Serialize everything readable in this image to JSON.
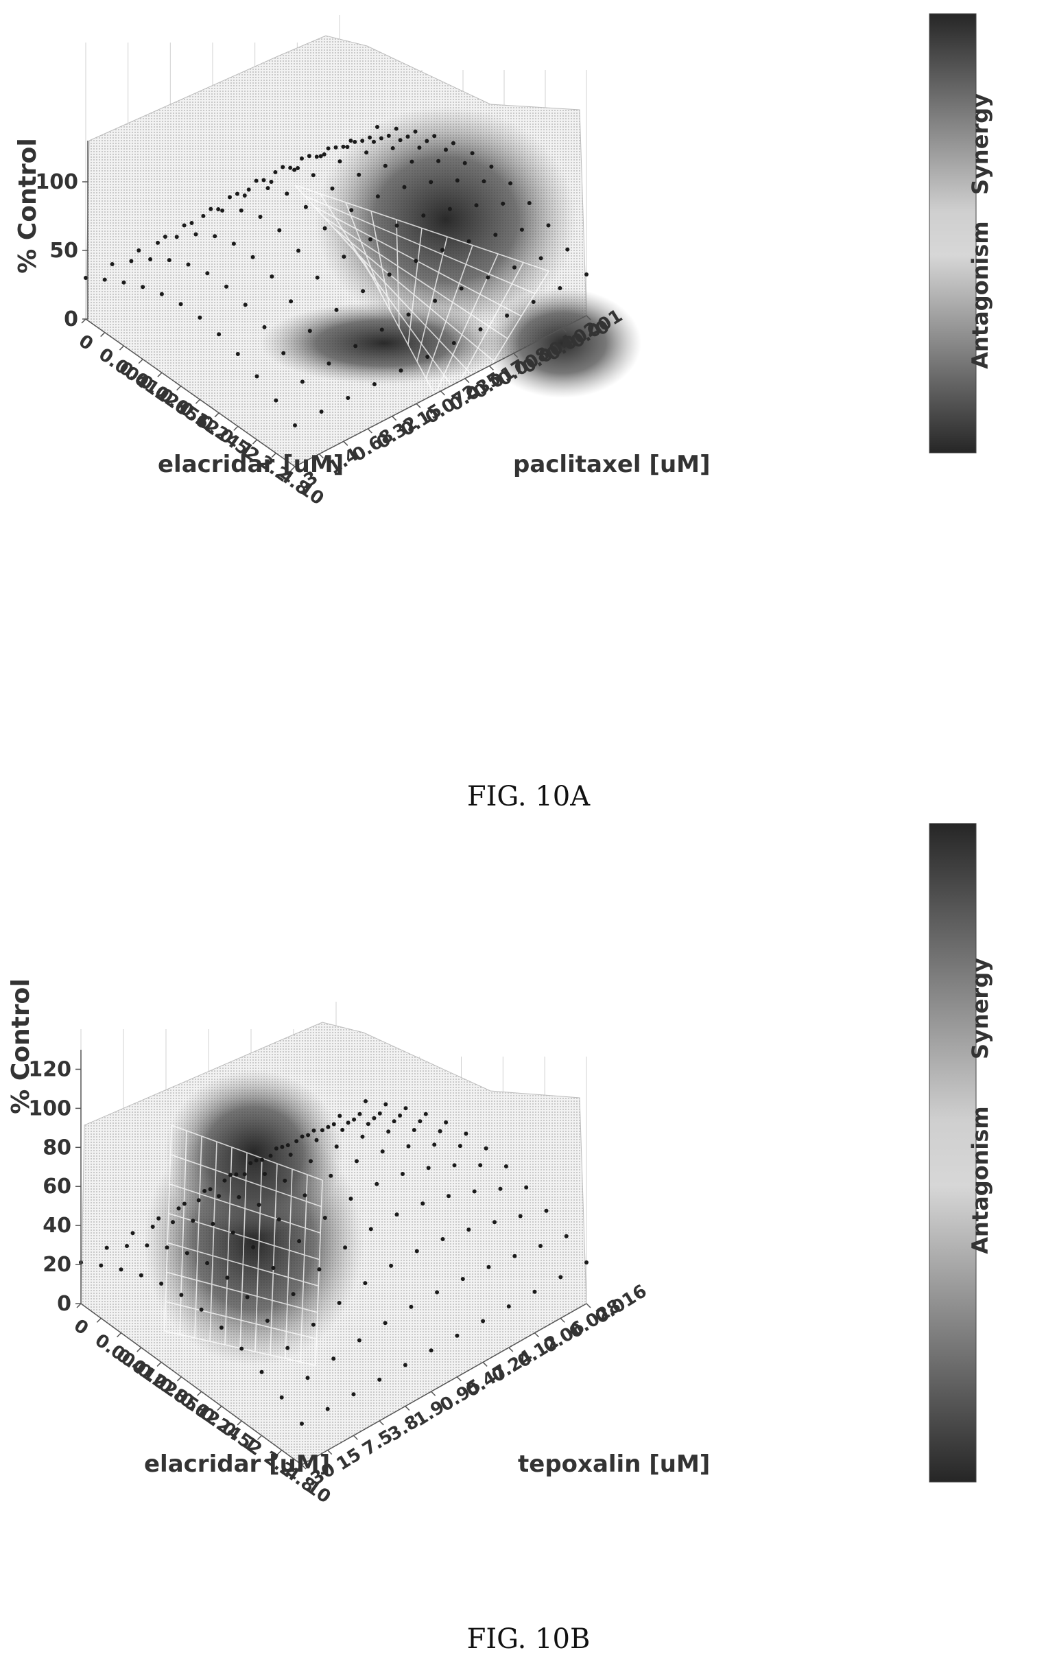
{
  "chart_data": [
    {
      "type": "surface3d",
      "caption": "FIG. 10A",
      "zlabel": "% Control",
      "xlabel": "elacridar [uM]",
      "ylabel": "paclitaxel [uM]",
      "x_ticks": [
        "0",
        "0.004",
        "0.012",
        "0.028",
        "0.056",
        "0.12",
        "0.24",
        "0.52",
        "1",
        "2.2",
        "4.8",
        "10"
      ],
      "y_ticks": [
        "3",
        "1.4",
        "0.68",
        "0.32",
        "0.15",
        "0.072",
        "0.035",
        "0.017",
        "0.008",
        "0.004",
        "0.002",
        "0.001",
        "0"
      ],
      "z_ticks": [
        "0",
        "50",
        "100"
      ],
      "zlim": [
        0,
        130
      ],
      "colorbar": {
        "labels": [
          "Antagonism",
          "Synergy"
        ]
      }
    },
    {
      "type": "surface3d",
      "caption": "FIG. 10B",
      "zlabel": "% Control",
      "xlabel": "elacridar [uM]",
      "ylabel": "tepoxalin [uM]",
      "x_ticks": [
        "0",
        "0.004",
        "0.012",
        "0.028",
        "0.056",
        "0.12",
        "0.24",
        "0.52",
        "1",
        "2.2",
        "4.8",
        "10"
      ],
      "y_ticks": [
        "30",
        "15",
        "7.5",
        "3.8",
        "1.9",
        "0.95",
        "0.47",
        "0.24",
        "0.12",
        "0.06",
        "0.028",
        "0.016"
      ],
      "z_ticks": [
        "0",
        "20",
        "40",
        "60",
        "80",
        "100",
        "120"
      ],
      "zlim": [
        0,
        130
      ],
      "colorbar": {
        "labels": [
          "Antagonism",
          "Synergy"
        ]
      }
    }
  ]
}
